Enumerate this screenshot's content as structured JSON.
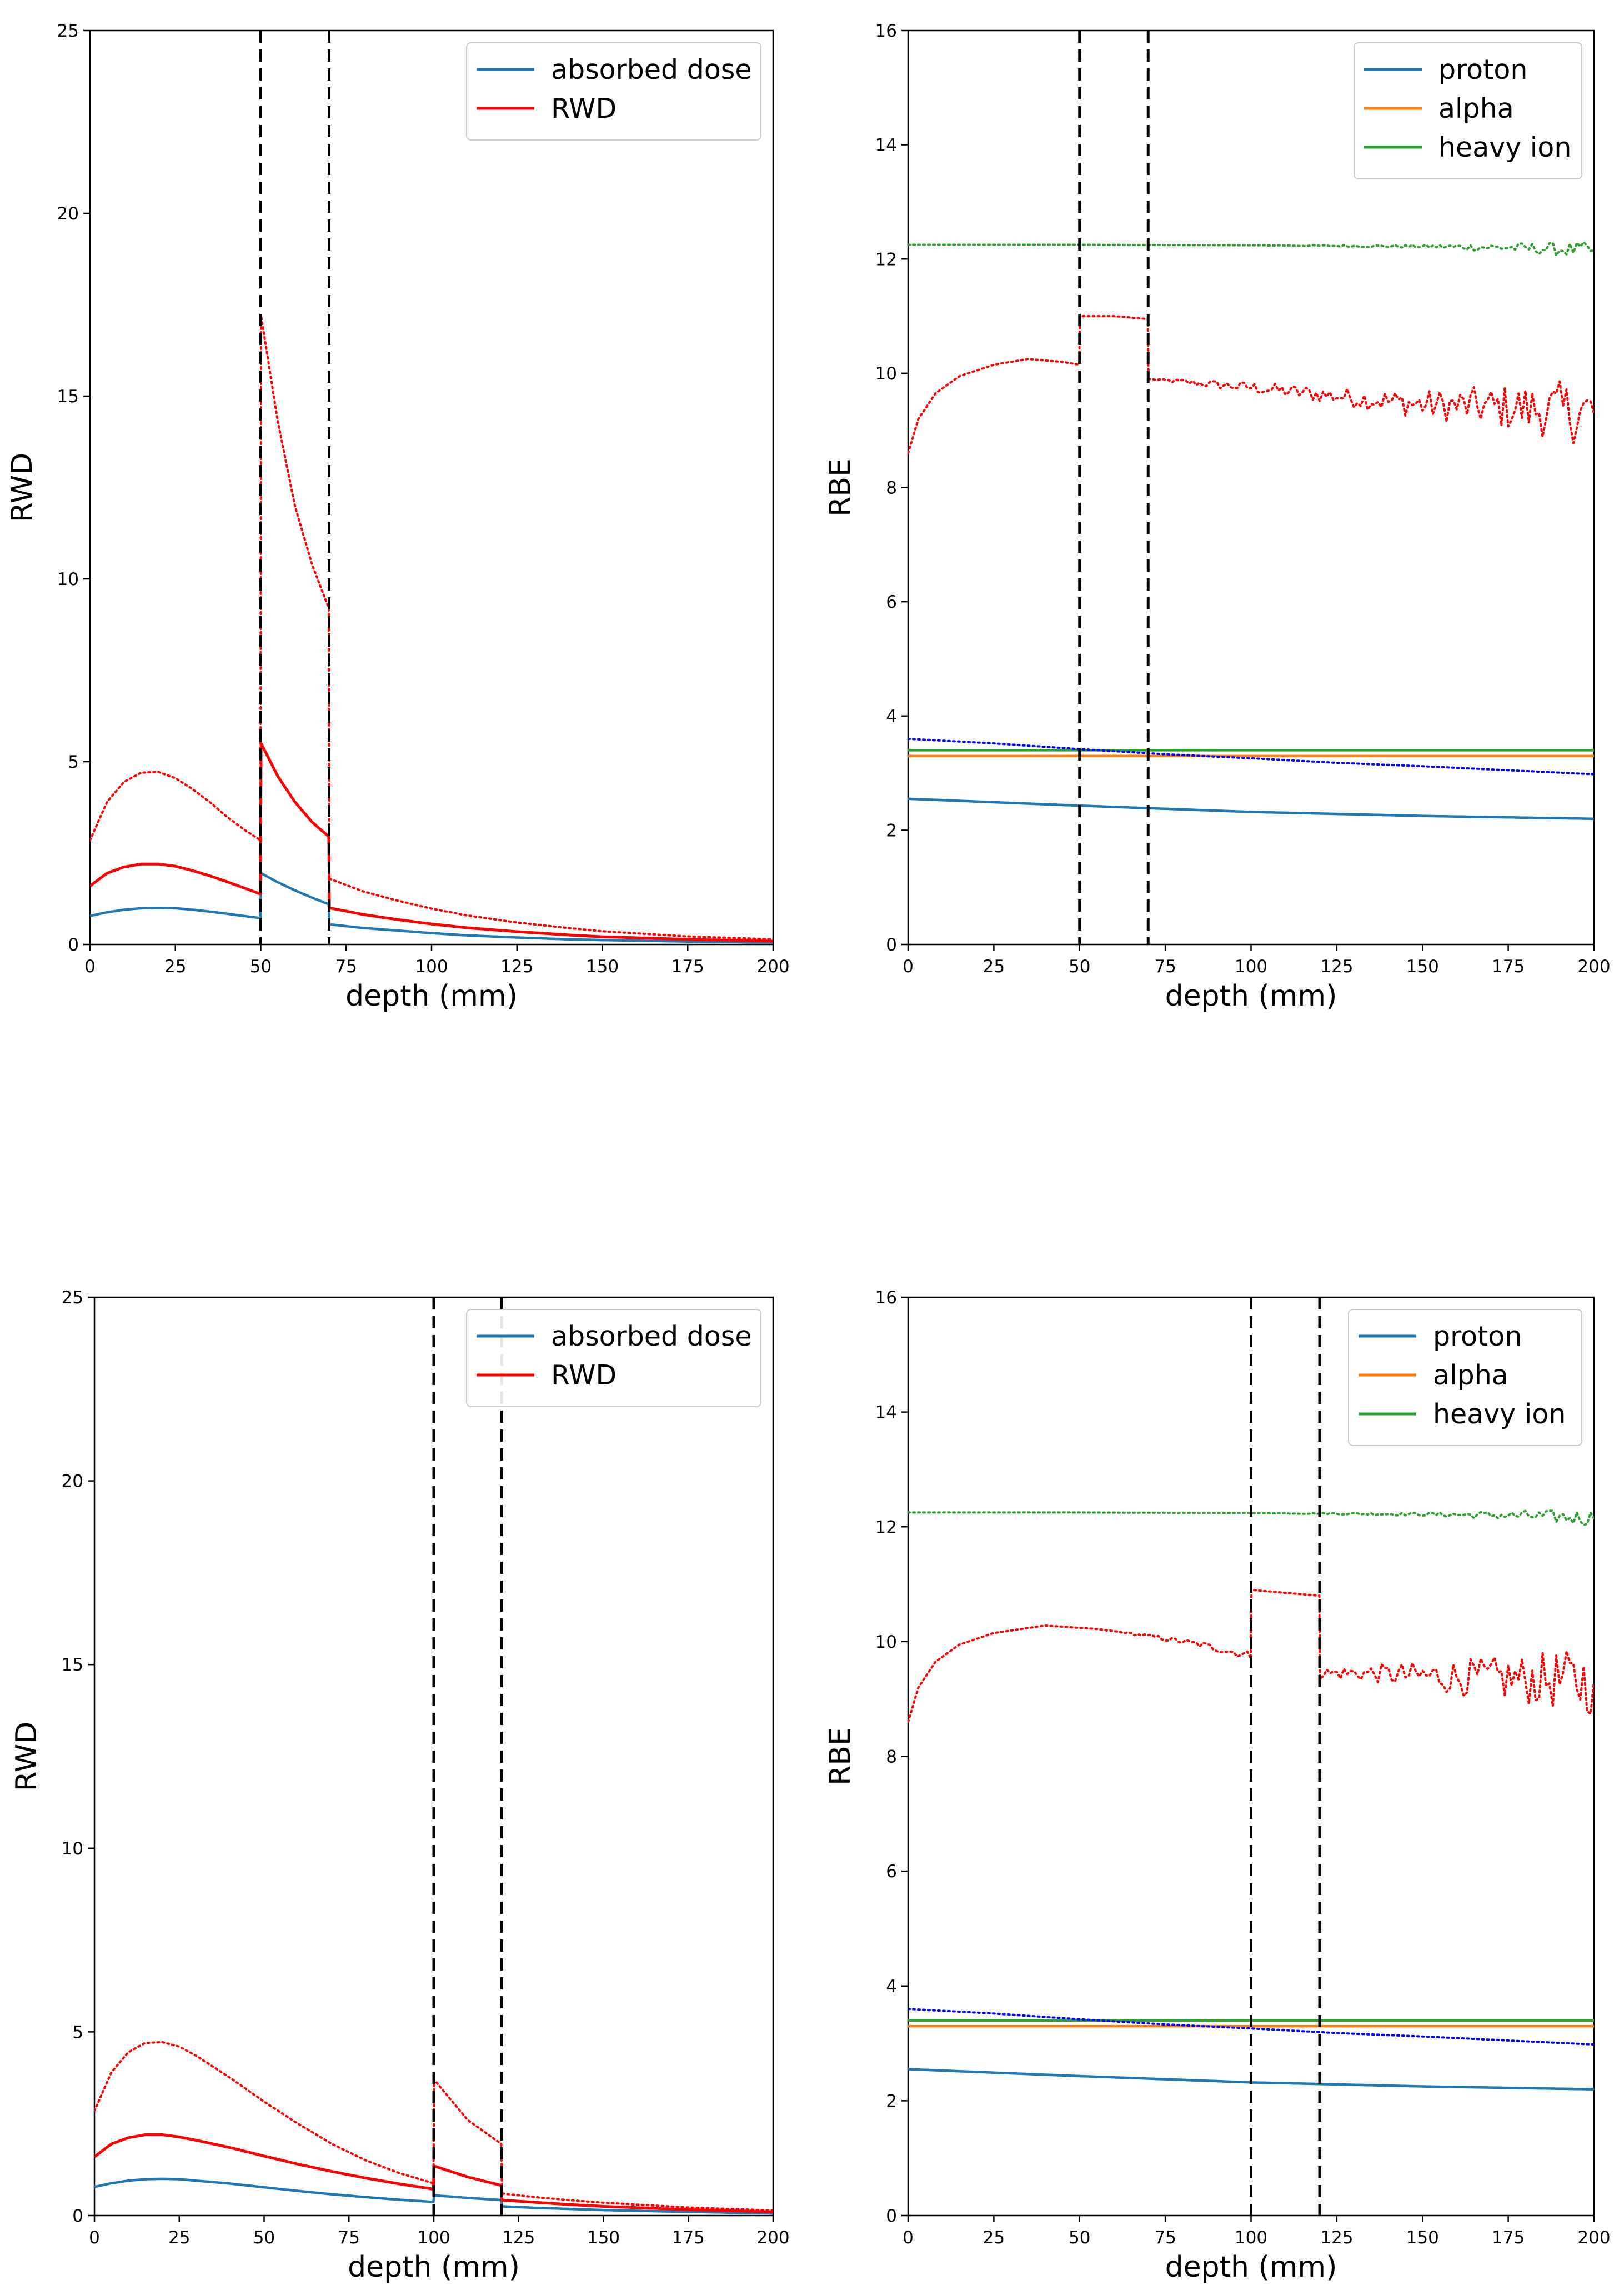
{
  "chart_data": [
    {
      "type": "line",
      "id": "top-left",
      "title": "",
      "xlabel": "depth (mm)",
      "ylabel": "RWD",
      "xlim": [
        0,
        200
      ],
      "ylim": [
        0,
        25
      ],
      "xticks": [
        0,
        25,
        50,
        75,
        100,
        125,
        150,
        175,
        200
      ],
      "yticks": [
        0,
        5,
        10,
        15,
        20,
        25
      ],
      "grid": false,
      "legend_position": "top-right",
      "legend": [
        {
          "label": "absorbed dose",
          "color": "#1f77b4"
        },
        {
          "label": "RWD",
          "color": "#ff0000"
        }
      ],
      "vlines": [
        50,
        70
      ],
      "series": [
        {
          "name": "absorbed dose",
          "color": "#1f77b4",
          "style": "solid",
          "x": [
            0,
            5,
            10,
            15,
            20,
            25,
            30,
            35,
            40,
            45,
            49.9,
            50.1,
            55,
            60,
            65,
            69.9,
            70.1,
            80,
            90,
            100,
            110,
            125,
            140,
            150,
            175,
            200
          ],
          "y": [
            0.78,
            0.88,
            0.95,
            0.99,
            1.0,
            0.99,
            0.95,
            0.9,
            0.84,
            0.78,
            0.72,
            1.95,
            1.7,
            1.48,
            1.28,
            1.1,
            0.55,
            0.45,
            0.38,
            0.31,
            0.25,
            0.19,
            0.14,
            0.12,
            0.08,
            0.05
          ]
        },
        {
          "name": "RWD",
          "color": "#ff0000",
          "style": "solid",
          "x": [
            0,
            5,
            10,
            15,
            20,
            25,
            30,
            35,
            40,
            45,
            49.9,
            50.1,
            55,
            60,
            65,
            69.9,
            70.1,
            80,
            90,
            100,
            110,
            125,
            140,
            150,
            175,
            200
          ],
          "y": [
            1.6,
            1.95,
            2.12,
            2.2,
            2.2,
            2.14,
            2.02,
            1.88,
            1.72,
            1.55,
            1.38,
            5.5,
            4.6,
            3.9,
            3.35,
            2.95,
            1.0,
            0.82,
            0.68,
            0.56,
            0.46,
            0.35,
            0.26,
            0.21,
            0.14,
            0.09
          ]
        },
        {
          "name": "RWD (dotted)",
          "color": "#ff0000",
          "style": "dotted",
          "x": [
            0,
            5,
            10,
            15,
            20,
            25,
            30,
            35,
            40,
            45,
            49.9,
            50.1,
            55,
            60,
            65,
            69.9,
            70.1,
            80,
            90,
            100,
            110,
            125,
            140,
            150,
            175,
            200
          ],
          "y": [
            2.85,
            3.9,
            4.45,
            4.7,
            4.72,
            4.55,
            4.25,
            3.9,
            3.5,
            3.15,
            2.85,
            17.2,
            14.3,
            12.0,
            10.4,
            9.2,
            1.8,
            1.45,
            1.2,
            0.98,
            0.8,
            0.6,
            0.45,
            0.36,
            0.22,
            0.14
          ]
        }
      ]
    },
    {
      "type": "line",
      "id": "top-right",
      "title": "",
      "xlabel": "depth (mm)",
      "ylabel": "RBE",
      "xlim": [
        0,
        200
      ],
      "ylim": [
        0,
        16
      ],
      "xticks": [
        0,
        25,
        50,
        75,
        100,
        125,
        150,
        175,
        200
      ],
      "yticks": [
        0,
        2,
        4,
        6,
        8,
        10,
        12,
        14,
        16
      ],
      "grid": false,
      "legend_position": "top-right",
      "legend": [
        {
          "label": "proton",
          "color": "#1f77b4"
        },
        {
          "label": "alpha",
          "color": "#ff7f0e"
        },
        {
          "label": "heavy ion",
          "color": "#2ca02c"
        }
      ],
      "vlines": [
        50,
        70
      ],
      "series": [
        {
          "name": "proton",
          "color": "#1f77b4",
          "style": "solid",
          "x": [
            0,
            50,
            100,
            150,
            200
          ],
          "y": [
            2.55,
            2.43,
            2.32,
            2.25,
            2.2
          ]
        },
        {
          "name": "alpha",
          "color": "#ff7f0e",
          "style": "solid",
          "x": [
            0,
            200
          ],
          "y": [
            3.3,
            3.3
          ]
        },
        {
          "name": "heavy ion",
          "color": "#2ca02c",
          "style": "solid",
          "x": [
            0,
            200
          ],
          "y": [
            3.4,
            3.4
          ]
        },
        {
          "name": "proton (dotted)",
          "color": "#0000ff",
          "style": "dotted",
          "x": [
            0,
            25,
            50,
            75,
            100,
            125,
            150,
            175,
            200
          ],
          "y": [
            3.6,
            3.52,
            3.42,
            3.33,
            3.26,
            3.18,
            3.12,
            3.05,
            2.98
          ]
        },
        {
          "name": "alpha (dotted)",
          "color": "#ff0000",
          "style": "dotted",
          "x": [
            0,
            3,
            8,
            15,
            25,
            35,
            45,
            49.9,
            50.1,
            60,
            69.9,
            70.1,
            80,
            100,
            125,
            150,
            175,
            200
          ],
          "y": [
            8.6,
            9.2,
            9.65,
            9.95,
            10.15,
            10.25,
            10.2,
            10.15,
            11.0,
            11.0,
            10.95,
            9.9,
            9.85,
            9.75,
            9.6,
            9.45,
            9.4,
            9.3
          ],
          "noise": [
            0,
            0,
            0,
            0,
            0,
            0,
            0,
            0,
            0,
            0,
            0,
            0,
            0.05,
            0.1,
            0.15,
            0.25,
            0.4,
            0.6
          ]
        },
        {
          "name": "heavy ion (dotted)",
          "color": "#2ca02c",
          "style": "dotted",
          "x": [
            0,
            50,
            100,
            150,
            175,
            200
          ],
          "y": [
            12.25,
            12.25,
            12.24,
            12.22,
            12.2,
            12.15
          ],
          "noise": [
            0,
            0,
            0,
            0.03,
            0.08,
            0.15
          ]
        }
      ]
    },
    {
      "type": "line",
      "id": "bottom-left",
      "title": "",
      "xlabel": "depth (mm)",
      "ylabel": "RWD",
      "xlim": [
        0,
        200
      ],
      "ylim": [
        0,
        25
      ],
      "xticks": [
        0,
        25,
        50,
        75,
        100,
        125,
        150,
        175,
        200
      ],
      "yticks": [
        0,
        5,
        10,
        15,
        20,
        25
      ],
      "grid": false,
      "legend_position": "top-right",
      "legend": [
        {
          "label": "absorbed dose",
          "color": "#1f77b4"
        },
        {
          "label": "RWD",
          "color": "#ff0000"
        }
      ],
      "vlines": [
        100,
        120
      ],
      "series": [
        {
          "name": "absorbed dose",
          "color": "#1f77b4",
          "style": "solid",
          "x": [
            0,
            5,
            10,
            15,
            20,
            25,
            30,
            40,
            50,
            60,
            70,
            80,
            90,
            99.9,
            100.1,
            110,
            119.9,
            120.1,
            130,
            140,
            150,
            175,
            200
          ],
          "y": [
            0.78,
            0.88,
            0.95,
            0.99,
            1.0,
            0.99,
            0.95,
            0.87,
            0.77,
            0.67,
            0.58,
            0.5,
            0.43,
            0.37,
            0.55,
            0.48,
            0.42,
            0.25,
            0.21,
            0.18,
            0.15,
            0.1,
            0.06
          ]
        },
        {
          "name": "RWD",
          "color": "#ff0000",
          "style": "solid",
          "x": [
            0,
            5,
            10,
            15,
            20,
            25,
            30,
            40,
            50,
            60,
            70,
            80,
            90,
            99.9,
            100.1,
            110,
            119.9,
            120.1,
            130,
            140,
            150,
            175,
            200
          ],
          "y": [
            1.6,
            1.95,
            2.12,
            2.2,
            2.2,
            2.14,
            2.05,
            1.85,
            1.62,
            1.4,
            1.2,
            1.02,
            0.86,
            0.72,
            1.35,
            1.05,
            0.82,
            0.42,
            0.36,
            0.3,
            0.25,
            0.16,
            0.1
          ]
        },
        {
          "name": "RWD (dotted)",
          "color": "#ff0000",
          "style": "dotted",
          "x": [
            0,
            5,
            10,
            15,
            20,
            25,
            30,
            40,
            50,
            60,
            70,
            80,
            90,
            99.9,
            100.1,
            110,
            119.9,
            120.1,
            130,
            140,
            150,
            175,
            200
          ],
          "y": [
            2.85,
            3.9,
            4.45,
            4.7,
            4.72,
            4.6,
            4.35,
            3.75,
            3.1,
            2.5,
            1.95,
            1.5,
            1.15,
            0.88,
            3.7,
            2.6,
            1.95,
            0.6,
            0.5,
            0.42,
            0.35,
            0.22,
            0.14
          ]
        }
      ]
    },
    {
      "type": "line",
      "id": "bottom-right",
      "title": "",
      "xlabel": "depth (mm)",
      "ylabel": "RBE",
      "xlim": [
        0,
        200
      ],
      "ylim": [
        0,
        16
      ],
      "xticks": [
        0,
        25,
        50,
        75,
        100,
        125,
        150,
        175,
        200
      ],
      "yticks": [
        0,
        2,
        4,
        6,
        8,
        10,
        12,
        14,
        16
      ],
      "grid": false,
      "legend_position": "top-right",
      "legend": [
        {
          "label": "proton",
          "color": "#1f77b4"
        },
        {
          "label": "alpha",
          "color": "#ff7f0e"
        },
        {
          "label": "heavy ion",
          "color": "#2ca02c"
        }
      ],
      "vlines": [
        100,
        120
      ],
      "series": [
        {
          "name": "proton",
          "color": "#1f77b4",
          "style": "solid",
          "x": [
            0,
            50,
            100,
            150,
            200
          ],
          "y": [
            2.55,
            2.43,
            2.32,
            2.25,
            2.2
          ]
        },
        {
          "name": "alpha",
          "color": "#ff7f0e",
          "style": "solid",
          "x": [
            0,
            200
          ],
          "y": [
            3.3,
            3.3
          ]
        },
        {
          "name": "heavy ion",
          "color": "#2ca02c",
          "style": "solid",
          "x": [
            0,
            200
          ],
          "y": [
            3.4,
            3.4
          ]
        },
        {
          "name": "proton (dotted)",
          "color": "#0000ff",
          "style": "dotted",
          "x": [
            0,
            25,
            50,
            75,
            100,
            125,
            150,
            175,
            200
          ],
          "y": [
            3.6,
            3.52,
            3.42,
            3.33,
            3.26,
            3.18,
            3.12,
            3.05,
            2.98
          ]
        },
        {
          "name": "alpha (dotted)",
          "color": "#ff0000",
          "style": "dotted",
          "x": [
            0,
            3,
            8,
            15,
            25,
            40,
            55,
            70,
            85,
            99.9,
            100.1,
            110,
            119.9,
            120.1,
            135,
            150,
            175,
            200
          ],
          "y": [
            8.6,
            9.2,
            9.65,
            9.95,
            10.15,
            10.28,
            10.22,
            10.1,
            9.95,
            9.75,
            10.9,
            10.85,
            10.8,
            9.45,
            9.45,
            9.4,
            9.35,
            9.3
          ],
          "noise": [
            0,
            0,
            0,
            0,
            0,
            0,
            0,
            0.03,
            0.06,
            0.08,
            0,
            0,
            0,
            0.1,
            0.15,
            0.25,
            0.4,
            0.6
          ]
        },
        {
          "name": "heavy ion (dotted)",
          "color": "#2ca02c",
          "style": "dotted",
          "x": [
            0,
            50,
            100,
            150,
            175,
            200
          ],
          "y": [
            12.25,
            12.25,
            12.24,
            12.22,
            12.2,
            12.15
          ],
          "noise": [
            0,
            0,
            0,
            0.03,
            0.08,
            0.15
          ]
        }
      ]
    }
  ]
}
